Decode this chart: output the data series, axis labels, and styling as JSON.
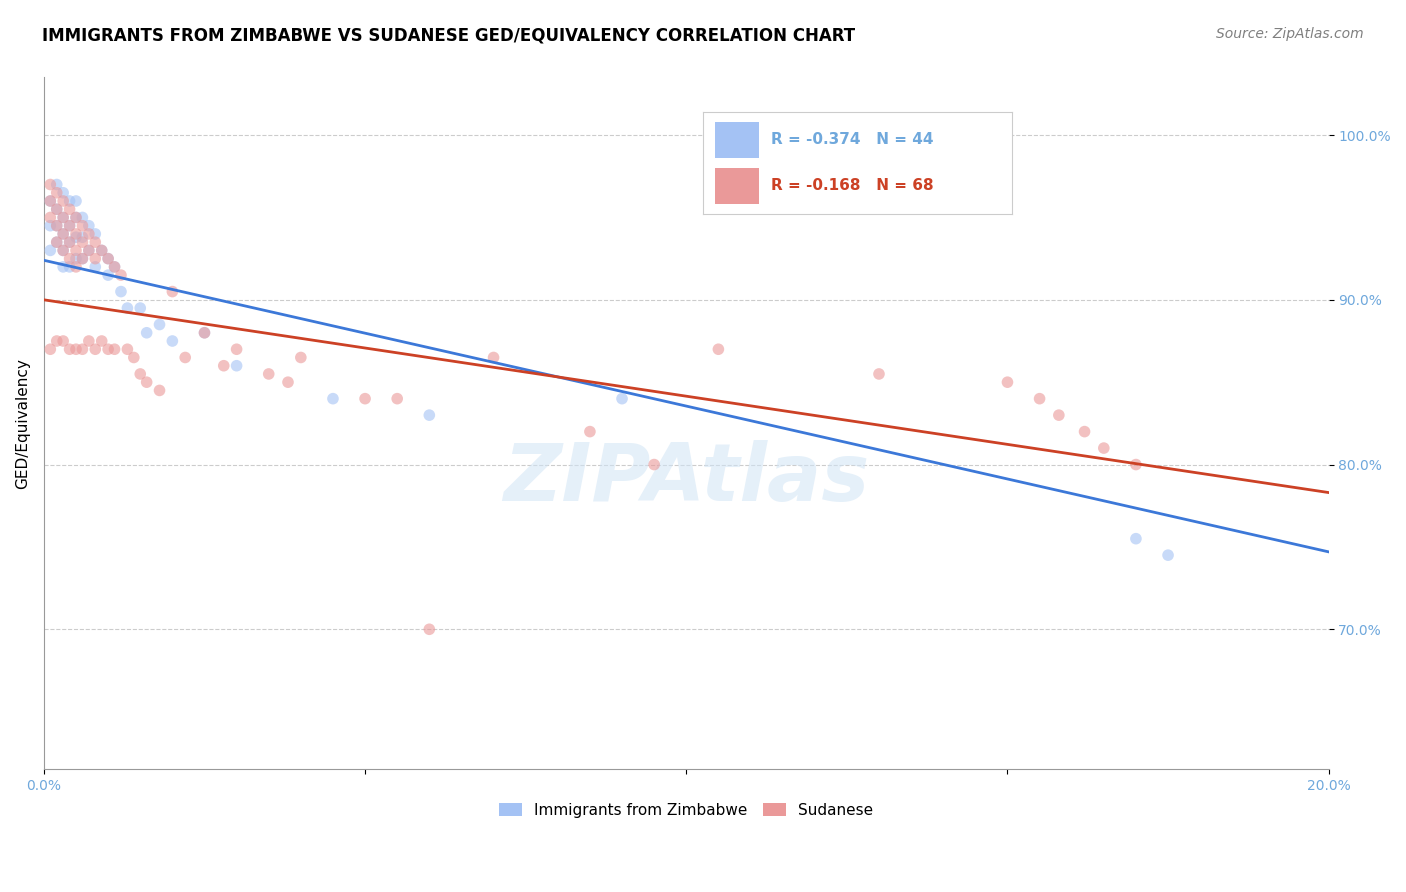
{
  "title": "IMMIGRANTS FROM ZIMBABWE VS SUDANESE GED/EQUIVALENCY CORRELATION CHART",
  "source": "Source: ZipAtlas.com",
  "ylabel": "GED/Equivalency",
  "watermark": "ZIPAtlas",
  "legend_blue_r": "R = -0.374",
  "legend_blue_n": "N = 44",
  "legend_pink_r": "R = -0.168",
  "legend_pink_n": "N = 68",
  "blue_color": "#a4c2f4",
  "pink_color": "#ea9999",
  "blue_line_color": "#3c78d8",
  "pink_line_color": "#cc4125",
  "axis_label_color": "#6fa8dc",
  "xlim": [
    0.0,
    0.2
  ],
  "ylim": [
    0.615,
    1.035
  ],
  "yticks": [
    0.7,
    0.8,
    0.9,
    1.0
  ],
  "ytick_labels": [
    "70.0%",
    "80.0%",
    "90.0%",
    "100.0%"
  ],
  "xticks": [
    0.0,
    0.05,
    0.1,
    0.15,
    0.2
  ],
  "xtick_labels": [
    "0.0%",
    "",
    "",
    "",
    "20.0%"
  ],
  "blue_scatter_x": [
    0.001,
    0.001,
    0.001,
    0.002,
    0.002,
    0.002,
    0.002,
    0.003,
    0.003,
    0.003,
    0.003,
    0.003,
    0.004,
    0.004,
    0.004,
    0.004,
    0.005,
    0.005,
    0.005,
    0.005,
    0.006,
    0.006,
    0.006,
    0.007,
    0.007,
    0.008,
    0.008,
    0.009,
    0.01,
    0.01,
    0.011,
    0.012,
    0.013,
    0.015,
    0.016,
    0.018,
    0.02,
    0.025,
    0.03,
    0.045,
    0.06,
    0.09,
    0.17,
    0.175
  ],
  "blue_scatter_y": [
    0.96,
    0.945,
    0.93,
    0.97,
    0.955,
    0.945,
    0.935,
    0.965,
    0.95,
    0.94,
    0.93,
    0.92,
    0.96,
    0.945,
    0.935,
    0.92,
    0.96,
    0.95,
    0.938,
    0.925,
    0.95,
    0.938,
    0.925,
    0.945,
    0.93,
    0.94,
    0.92,
    0.93,
    0.925,
    0.915,
    0.92,
    0.905,
    0.895,
    0.895,
    0.88,
    0.885,
    0.875,
    0.88,
    0.86,
    0.84,
    0.83,
    0.84,
    0.755,
    0.745
  ],
  "pink_scatter_x": [
    0.001,
    0.001,
    0.001,
    0.001,
    0.002,
    0.002,
    0.002,
    0.002,
    0.002,
    0.003,
    0.003,
    0.003,
    0.003,
    0.003,
    0.004,
    0.004,
    0.004,
    0.004,
    0.004,
    0.005,
    0.005,
    0.005,
    0.005,
    0.005,
    0.006,
    0.006,
    0.006,
    0.006,
    0.007,
    0.007,
    0.007,
    0.008,
    0.008,
    0.008,
    0.009,
    0.009,
    0.01,
    0.01,
    0.011,
    0.011,
    0.012,
    0.013,
    0.014,
    0.015,
    0.016,
    0.018,
    0.02,
    0.022,
    0.025,
    0.028,
    0.03,
    0.035,
    0.038,
    0.04,
    0.05,
    0.055,
    0.06,
    0.07,
    0.085,
    0.095,
    0.105,
    0.13,
    0.15,
    0.155,
    0.158,
    0.162,
    0.165,
    0.17
  ],
  "pink_scatter_y": [
    0.97,
    0.96,
    0.95,
    0.87,
    0.965,
    0.955,
    0.945,
    0.935,
    0.875,
    0.96,
    0.95,
    0.94,
    0.93,
    0.875,
    0.955,
    0.945,
    0.935,
    0.925,
    0.87,
    0.95,
    0.94,
    0.93,
    0.92,
    0.87,
    0.945,
    0.935,
    0.925,
    0.87,
    0.94,
    0.93,
    0.875,
    0.935,
    0.925,
    0.87,
    0.93,
    0.875,
    0.925,
    0.87,
    0.92,
    0.87,
    0.915,
    0.87,
    0.865,
    0.855,
    0.85,
    0.845,
    0.905,
    0.865,
    0.88,
    0.86,
    0.87,
    0.855,
    0.85,
    0.865,
    0.84,
    0.84,
    0.7,
    0.865,
    0.82,
    0.8,
    0.87,
    0.855,
    0.85,
    0.84,
    0.83,
    0.82,
    0.81,
    0.8
  ],
  "blue_trendline_x": [
    0.0,
    0.2
  ],
  "blue_trendline_y": [
    0.924,
    0.747
  ],
  "pink_trendline_x": [
    0.0,
    0.2
  ],
  "pink_trendline_y": [
    0.9,
    0.783
  ],
  "legend_label_blue": "Immigrants from Zimbabwe",
  "legend_label_pink": "Sudanese",
  "title_fontsize": 12,
  "source_fontsize": 10,
  "axis_fontsize": 11,
  "tick_fontsize": 10,
  "marker_size": 70,
  "marker_alpha": 0.6
}
